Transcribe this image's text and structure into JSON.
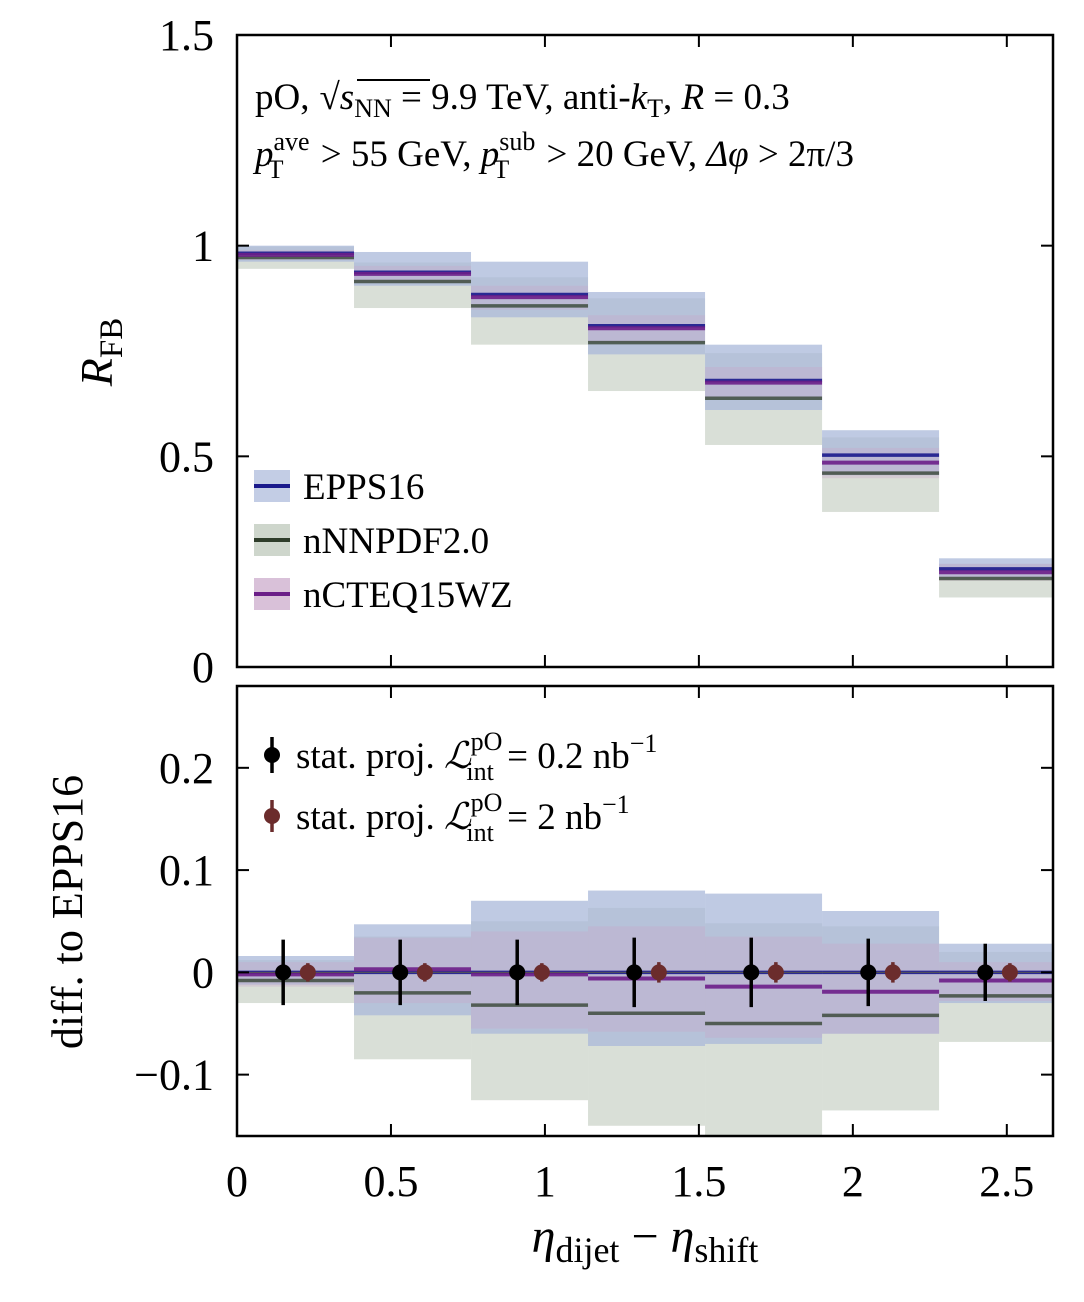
{
  "colors": {
    "EPPS16": "#1a1a8c",
    "EPPS16_band": "#aab8da",
    "nNNPDF2.0": "#2e3d2a",
    "nNNPDF2.0_band": "#b9c4b6",
    "nCTEQ15WZ": "#6b1e88",
    "nCTEQ15WZ_band": "#c9a6c9",
    "proj_low": "#000000",
    "proj_high": "#6b2c2c"
  },
  "chart_data": [
    {
      "id": "top",
      "type": "step-band",
      "ylabel_main": "R",
      "ylabel_sub": "FB",
      "xlim": [
        0,
        2.65
      ],
      "ylim": [
        0,
        1.5
      ],
      "yticks": [
        0,
        0.5,
        1,
        1.5
      ],
      "ytick_labels": [
        "0",
        "0.5",
        "1",
        "1.5"
      ],
      "annotation": {
        "line1": {
          "prefix": "pO,",
          "sqrt": "s",
          "sqrt_sub": "NN",
          "rest1": " = 9.9 TeV, anti-",
          "k": "k",
          "k_sub": "T",
          "rest2": ", ",
          "R": "R",
          "rest3": " = 0.3"
        },
        "line2": {
          "p1": "p",
          "p1_sup": "ave",
          "p1_sub": "T",
          "mid1": " > 55 GeV, ",
          "p2": "p",
          "p2_sup": "sub",
          "p2_sub": "T",
          "mid2": " > 20 GeV, ",
          "dphi": "Δφ",
          "mid3": " > 2π/3"
        }
      },
      "bin_edges": [
        0,
        0.38,
        0.76,
        1.14,
        1.52,
        1.9,
        2.28,
        2.65
      ],
      "series": [
        {
          "name": "EPPS16",
          "central": [
            0.982,
            0.937,
            0.884,
            0.81,
            0.68,
            0.503,
            0.233
          ],
          "band_lo": [
            0.962,
            0.905,
            0.83,
            0.742,
            0.61,
            0.455,
            0.208
          ],
          "band_hi": [
            1.0,
            0.985,
            0.962,
            0.89,
            0.765,
            0.562,
            0.258
          ]
        },
        {
          "name": "nNNPDF2.0",
          "central": [
            0.972,
            0.915,
            0.857,
            0.77,
            0.638,
            0.46,
            0.21
          ],
          "band_lo": [
            0.945,
            0.852,
            0.765,
            0.655,
            0.527,
            0.368,
            0.165
          ],
          "band_hi": [
            0.998,
            0.96,
            0.925,
            0.875,
            0.745,
            0.545,
            0.245
          ]
        },
        {
          "name": "nCTEQ15WZ",
          "central": [
            0.978,
            0.933,
            0.878,
            0.804,
            0.675,
            0.485,
            0.225
          ],
          "band_lo": [
            0.966,
            0.912,
            0.848,
            0.77,
            0.638,
            0.448,
            0.205
          ],
          "band_hi": [
            0.99,
            0.952,
            0.905,
            0.835,
            0.712,
            0.52,
            0.245
          ]
        }
      ],
      "legend": [
        "EPPS16",
        "nNNPDF2.0",
        "nCTEQ15WZ"
      ]
    },
    {
      "id": "bottom",
      "type": "step-band-with-points",
      "ylabel": "diff. to EPPS16",
      "xlabel": {
        "eta1": "η",
        "eta1_sub": "dijet",
        "minus": " − ",
        "eta2": "η",
        "eta2_sub": "shift"
      },
      "xlim": [
        0,
        2.65
      ],
      "ylim": [
        -0.16,
        0.28
      ],
      "yticks": [
        -0.1,
        0,
        0.1,
        0.2
      ],
      "ytick_labels": [
        "−0.1",
        "0",
        "0.1",
        "0.2"
      ],
      "xticks": [
        0,
        0.5,
        1,
        1.5,
        2,
        2.5
      ],
      "xtick_labels": [
        "0",
        "0.5",
        "1",
        "1.5",
        "2",
        "2.5"
      ],
      "bin_edges": [
        0,
        0.38,
        0.76,
        1.14,
        1.52,
        1.9,
        2.28,
        2.65
      ],
      "series": [
        {
          "name": "EPPS16",
          "central": [
            0,
            0,
            0,
            0,
            0,
            0,
            0
          ],
          "band_lo": [
            -0.012,
            -0.042,
            -0.06,
            -0.072,
            -0.07,
            -0.06,
            -0.03
          ],
          "band_hi": [
            0.016,
            0.047,
            0.07,
            0.08,
            0.077,
            0.06,
            0.028
          ]
        },
        {
          "name": "nNNPDF2.0",
          "central": [
            -0.008,
            -0.02,
            -0.032,
            -0.04,
            -0.05,
            -0.042,
            -0.023
          ],
          "band_lo": [
            -0.03,
            -0.085,
            -0.125,
            -0.15,
            -0.165,
            -0.135,
            -0.068
          ],
          "band_hi": [
            0.012,
            0.035,
            0.05,
            0.063,
            0.048,
            0.045,
            0.02
          ]
        },
        {
          "name": "nCTEQ15WZ",
          "central": [
            -0.002,
            0.003,
            -0.002,
            -0.006,
            -0.014,
            -0.019,
            -0.008
          ],
          "band_lo": [
            -0.014,
            -0.03,
            -0.055,
            -0.058,
            -0.064,
            -0.06,
            -0.028
          ],
          "band_hi": [
            0.01,
            0.034,
            0.04,
            0.045,
            0.035,
            0.028,
            0.01
          ]
        }
      ],
      "points": [
        {
          "name": "stat. proj. 0.2 nb-1",
          "x": [
            0.15,
            0.53,
            0.91,
            1.29,
            1.67,
            2.05,
            2.43
          ],
          "y": [
            0,
            0,
            0,
            0,
            0,
            0,
            0
          ],
          "err": [
            0.032,
            0.032,
            0.032,
            0.034,
            0.034,
            0.033,
            0.028
          ]
        },
        {
          "name": "stat. proj. 2 nb-1",
          "x": [
            0.23,
            0.61,
            0.99,
            1.37,
            1.75,
            2.13,
            2.51
          ],
          "y": [
            0,
            0,
            0,
            0,
            0,
            0,
            0
          ],
          "err": [
            0.009,
            0.009,
            0.009,
            0.01,
            0.01,
            0.01,
            0.009
          ]
        }
      ],
      "legend": {
        "entry1": {
          "text": "stat. proj. ",
          "L": "ℒ",
          "L_sup": "pO",
          "L_sub": "int",
          "value": " = 0.2 nb",
          "unit_sup": "−1"
        },
        "entry2": {
          "text": "stat. proj. ",
          "L": "ℒ",
          "L_sup": "pO",
          "L_sub": "int",
          "value": " = 2 nb",
          "unit_sup": "−1"
        }
      }
    }
  ]
}
